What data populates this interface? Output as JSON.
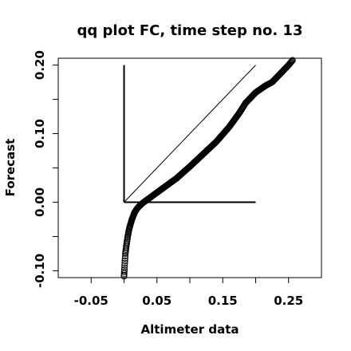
{
  "chart_data": {
    "type": "scatter",
    "title": "qq plot FC, time step no. 13",
    "xlabel": "Altimeter data",
    "ylabel": "Forecast",
    "xlim": [
      -0.1,
      0.3
    ],
    "ylim": [
      -0.11,
      0.21
    ],
    "x_ticks": [
      -0.1,
      -0.05,
      0,
      0.05,
      0.1,
      0.15,
      0.2,
      0.25,
      0.3
    ],
    "x_tick_labels": [
      "-0.05",
      "0.05",
      "0.15",
      "0.25"
    ],
    "x_tick_label_values": [
      -0.05,
      0.05,
      0.15,
      0.25
    ],
    "y_ticks": [
      -0.1,
      -0.05,
      0,
      0.05,
      0.1,
      0.15,
      0.2
    ],
    "y_tick_labels": [
      "-0.10",
      "0.00",
      "0.10",
      "0.20"
    ],
    "y_tick_label_values": [
      -0.1,
      0.0,
      0.1,
      0.2
    ],
    "grid": false,
    "marker": "open-circle",
    "lines": [
      {
        "x": [
          0,
          0.2
        ],
        "y": [
          0,
          0.2
        ]
      },
      {
        "x": [
          0,
          0
        ],
        "y": [
          0,
          0.2
        ]
      },
      {
        "x": [
          0,
          0.2
        ],
        "y": [
          0,
          0
        ]
      }
    ],
    "curve_knots": {
      "x": [
        0.0,
        0.001,
        0.002,
        0.004,
        0.006,
        0.008,
        0.012,
        0.016,
        0.02,
        0.025,
        0.03,
        0.04,
        0.05,
        0.06,
        0.08,
        0.1,
        0.12,
        0.14,
        0.16,
        0.175,
        0.185,
        0.2,
        0.215,
        0.225,
        0.24,
        0.25,
        0.256
      ],
      "y": [
        -0.108,
        -0.09,
        -0.075,
        -0.06,
        -0.048,
        -0.038,
        -0.025,
        -0.015,
        -0.009,
        -0.004,
        0.0,
        0.007,
        0.014,
        0.021,
        0.035,
        0.052,
        0.07,
        0.088,
        0.11,
        0.13,
        0.145,
        0.16,
        0.17,
        0.175,
        0.19,
        0.2,
        0.207
      ]
    },
    "n_points": 400
  }
}
